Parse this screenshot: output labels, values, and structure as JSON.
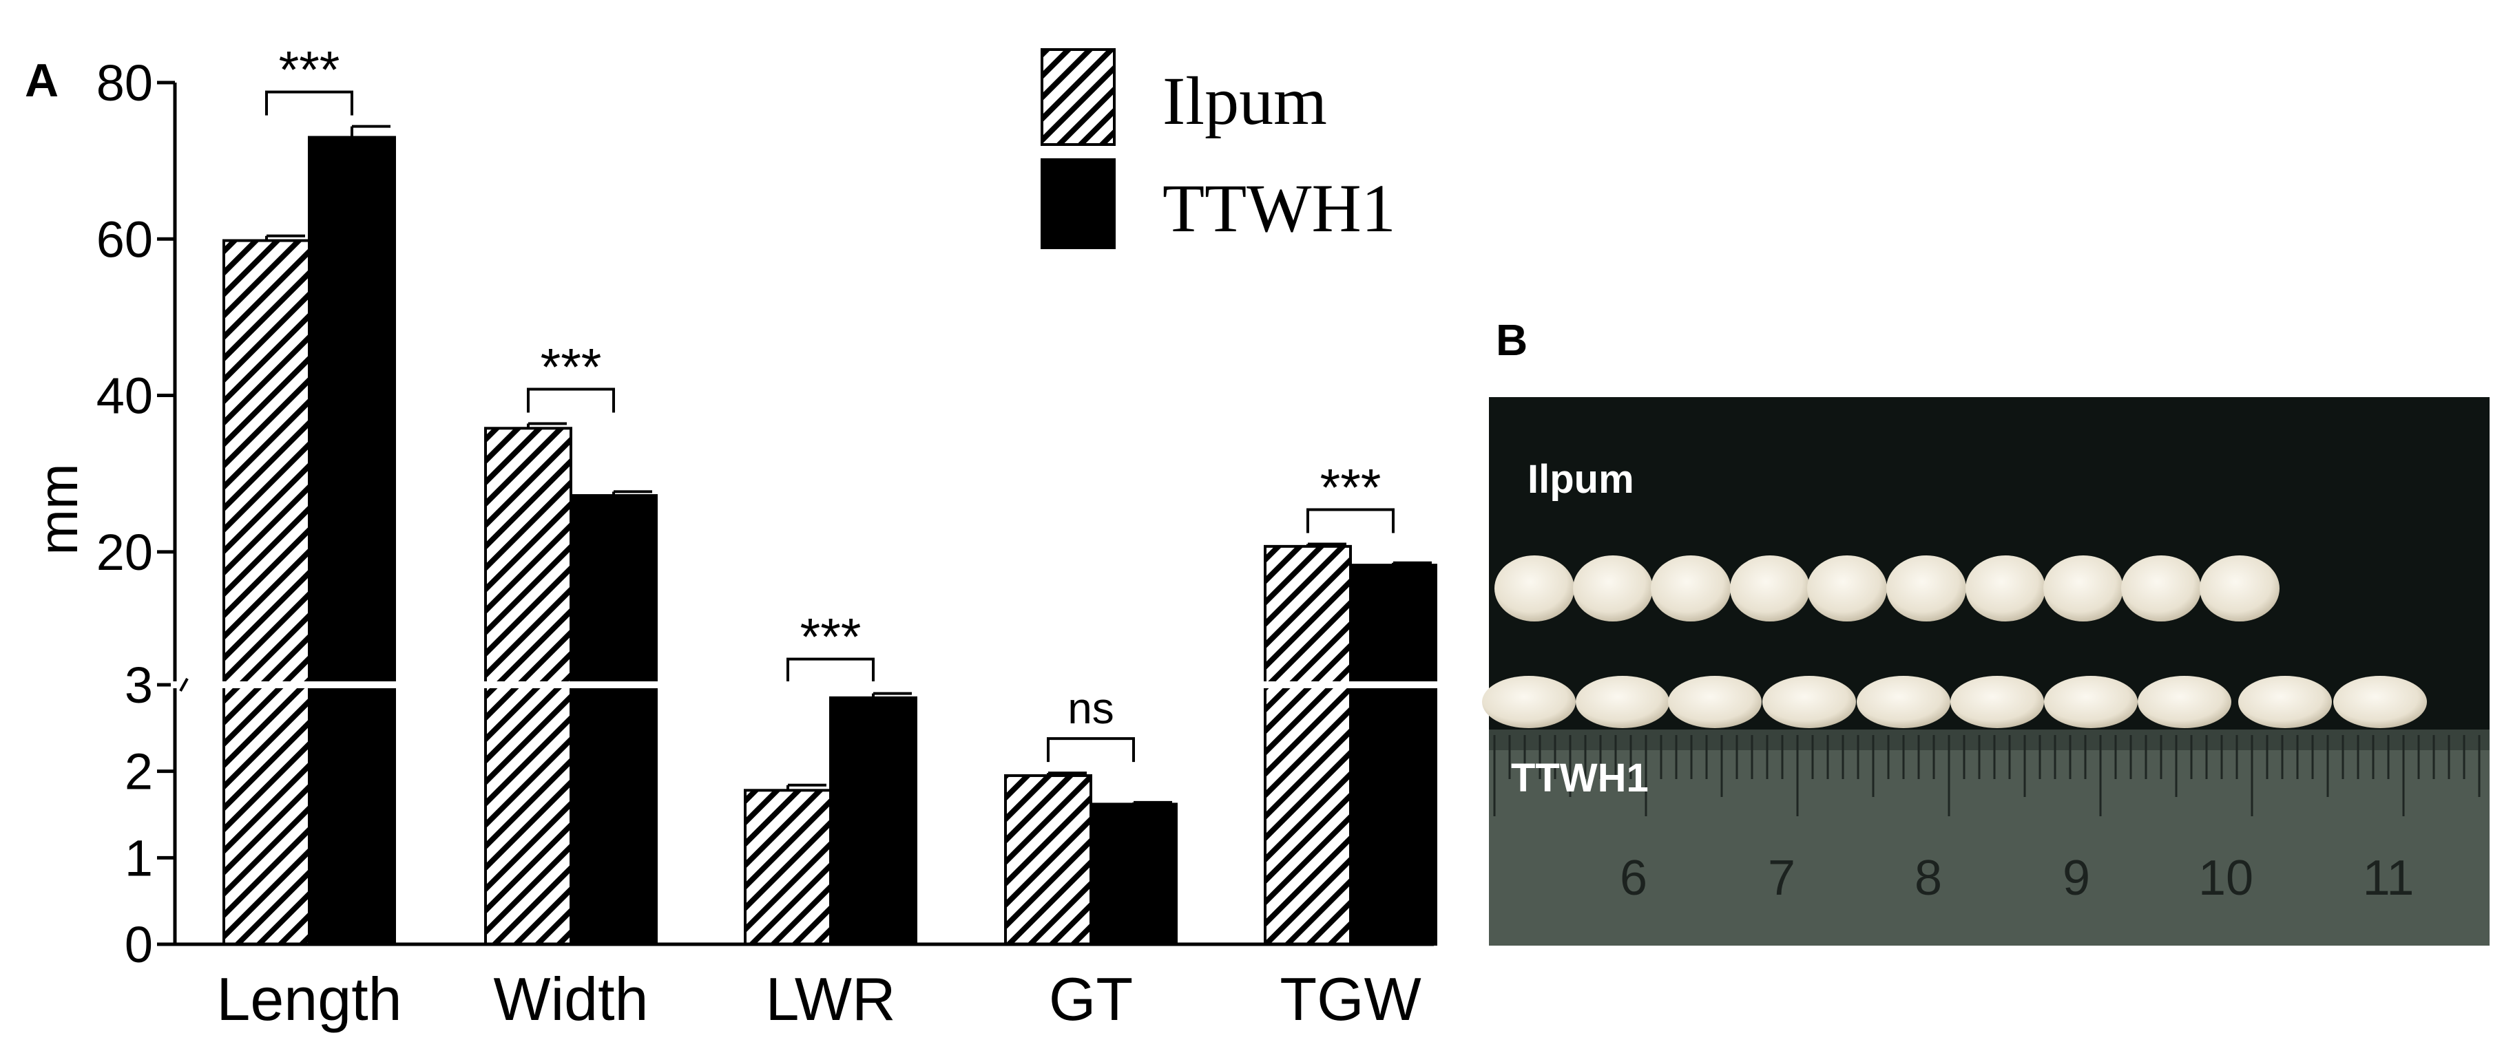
{
  "panels": {
    "a_label": "A",
    "b_label": "B"
  },
  "chart_data": {
    "type": "bar",
    "ylabel": "mm",
    "axis_break": true,
    "upper_ticks": [
      "20",
      "40",
      "60",
      "80"
    ],
    "lower_ticks": [
      "0",
      "1",
      "2",
      "3"
    ],
    "upper_range": [
      3,
      80
    ],
    "lower_range": [
      0,
      3
    ],
    "categories": [
      "Length",
      "Width",
      "LWR",
      "GT",
      "TGW"
    ],
    "series": [
      {
        "name": "Ilpum",
        "pattern": "hatched",
        "values": [
          59.8,
          35.8,
          1.78,
          1.95,
          20.7
        ],
        "errors": [
          0.6,
          0.6,
          0.06,
          0.03,
          0.3
        ]
      },
      {
        "name": "TTWH1",
        "pattern": "solid",
        "values": [
          73.0,
          27.2,
          2.85,
          1.62,
          18.3
        ],
        "errors": [
          1.4,
          0.5,
          0.05,
          0.02,
          0.3
        ]
      }
    ],
    "significance": [
      "***",
      "***",
      "***",
      "ns",
      "***"
    ],
    "legend_position": "top-right",
    "grid": false
  },
  "photo": {
    "label_top": "Ilpum",
    "label_bottom": "TTWH1",
    "ruler_numbers": [
      "6",
      "7",
      "8",
      "9",
      "10",
      "11"
    ],
    "grain_counts": [
      10,
      10
    ]
  },
  "colors": {
    "bar_solid": "#000000",
    "hatch": "#000000",
    "axis": "#000000",
    "break_line": "#ffffff",
    "photo_bg": "#0e1412",
    "grain": "#efeadf",
    "ruler": "#4f5a52"
  }
}
